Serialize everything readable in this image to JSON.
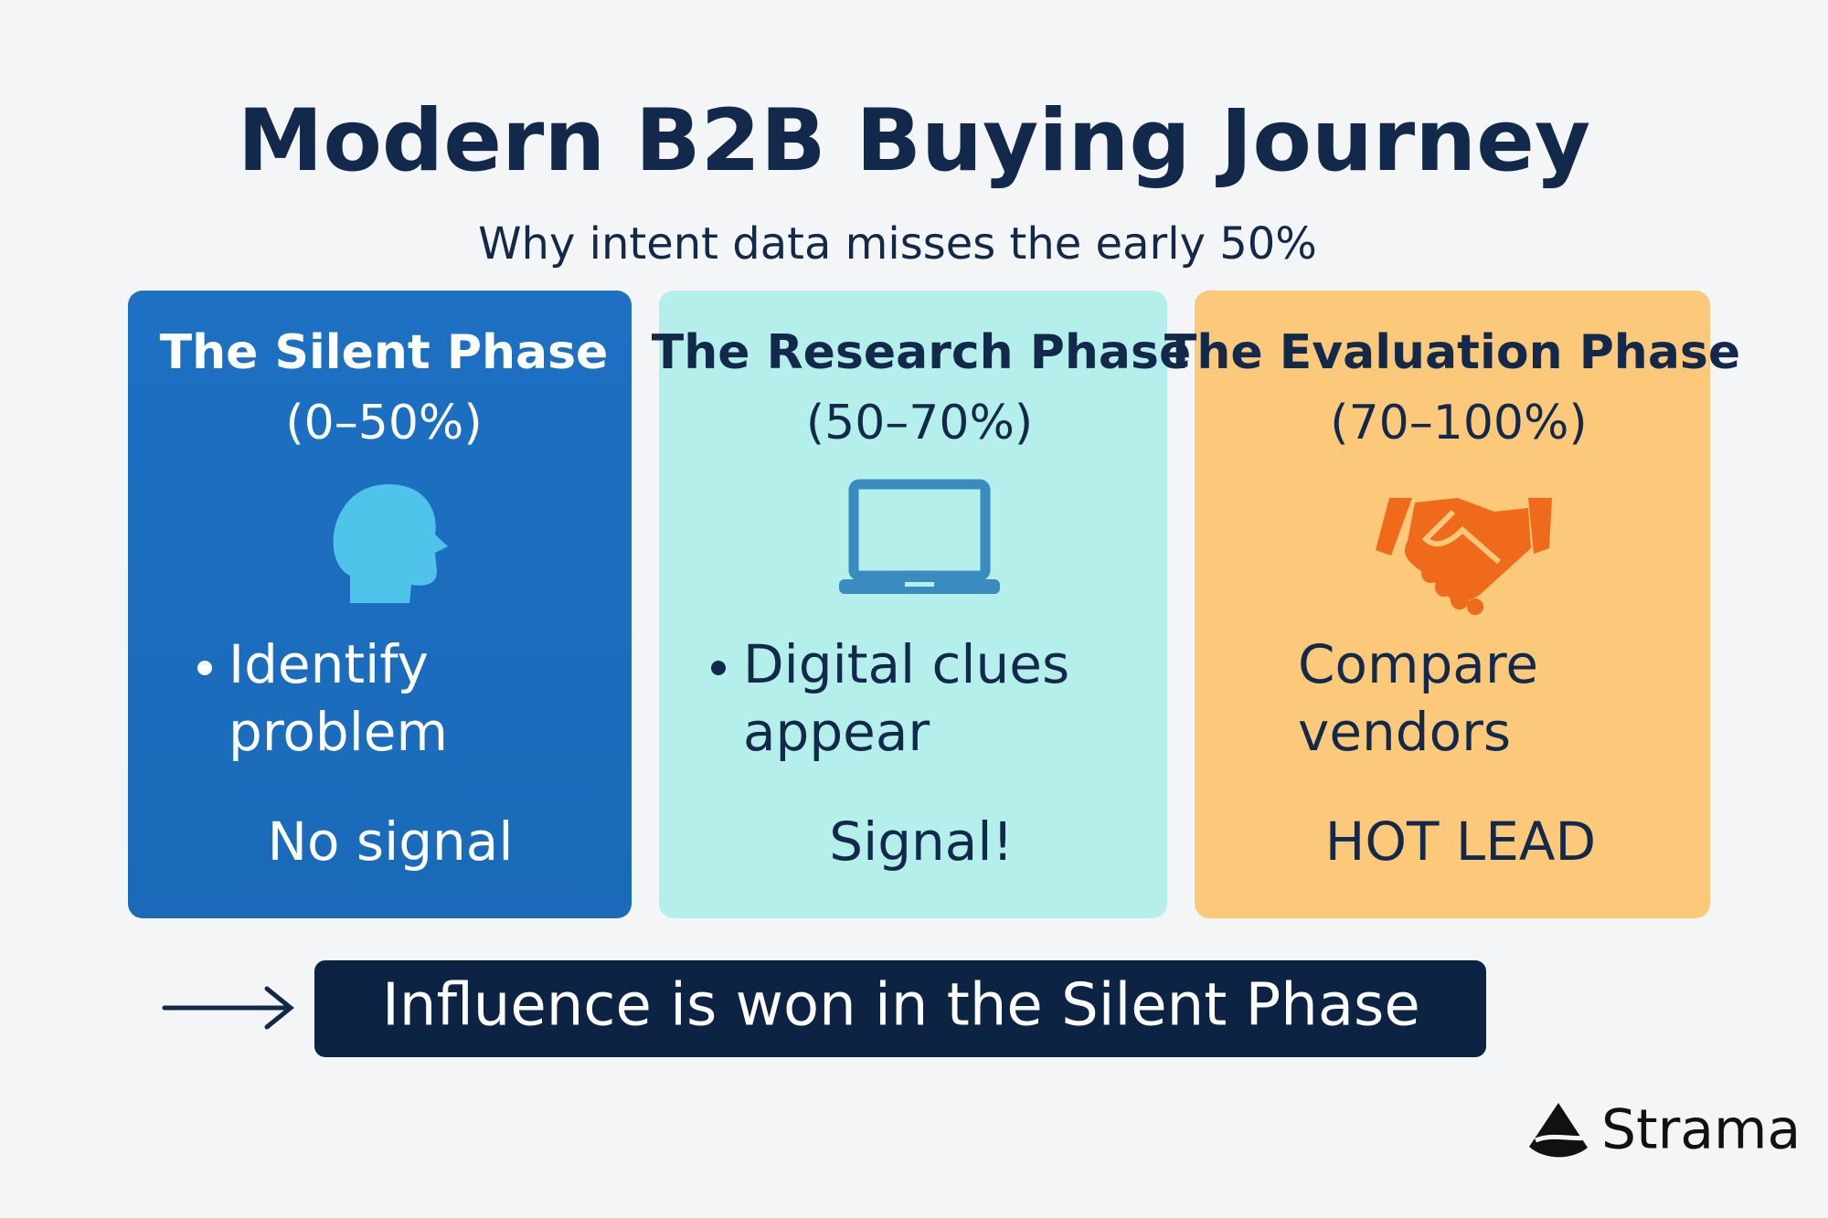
{
  "header": {
    "title": "Modern B2B Buying Journey",
    "subtitle": "Why intent data misses the early 50%"
  },
  "phases": [
    {
      "title": [
        "The Silent Phase",
        "(0–50%)"
      ],
      "description": [
        "Identify",
        "problem"
      ],
      "signal": "No signal"
    },
    {
      "title": [
        "The Research Phase",
        "(50–70%)"
      ],
      "description": [
        "Digital clues",
        "appear"
      ],
      "signal": "Signal!"
    },
    {
      "title": [
        "The Evaluation Phase",
        "(70–100%)"
      ],
      "description": [
        "Compare",
        "vendors"
      ],
      "signal": "HOT LEAD"
    }
  ],
  "banner": "Influence is won in the Silent Phase",
  "logo": "Strama"
}
